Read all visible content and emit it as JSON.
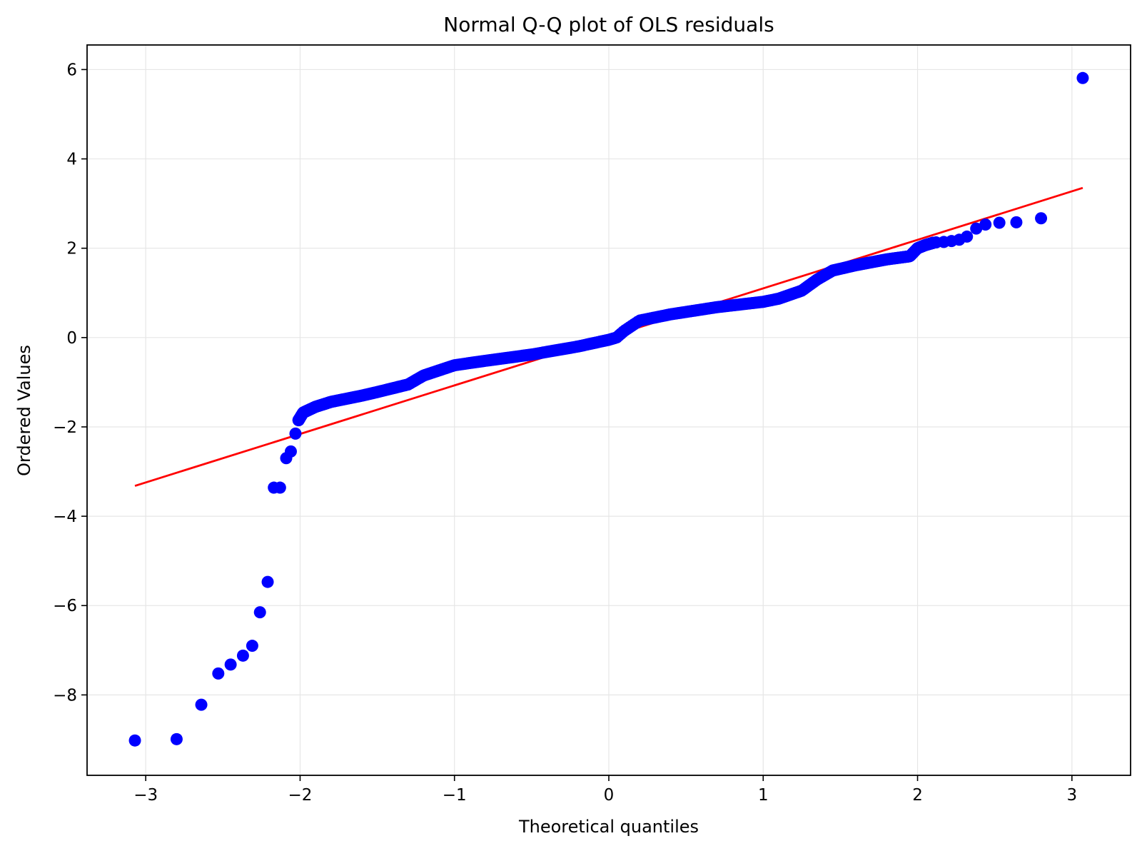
{
  "chart_data": {
    "type": "scatter",
    "title": "Normal Q-Q plot of OLS residuals",
    "xlabel": "Theoretical quantiles",
    "ylabel": "Ordered Values",
    "xlim": [
      -3.38,
      3.38
    ],
    "ylim": [
      -9.8,
      6.55
    ],
    "x_ticks": [
      -3,
      -2,
      -1,
      0,
      1,
      2,
      3
    ],
    "y_ticks": [
      -8,
      -6,
      -4,
      -2,
      0,
      2,
      4,
      6
    ],
    "x_tick_labels": [
      "−3",
      "−2",
      "−1",
      "0",
      "1",
      "2",
      "3"
    ],
    "y_tick_labels": [
      "−8",
      "−6",
      "−4",
      "−2",
      "0",
      "2",
      "4",
      "6"
    ],
    "grid": true,
    "legend": "none",
    "colors": {
      "points": "#0000ff",
      "fit_line": "#ff0000",
      "grid": "#e6e6e6",
      "axes": "#000000"
    },
    "fit_line": {
      "x": [
        -3.07,
        3.07
      ],
      "y": [
        -3.32,
        3.35
      ]
    },
    "outliers": [
      {
        "x": -3.07,
        "y": -9.02
      },
      {
        "x": -2.8,
        "y": -8.99
      },
      {
        "x": -2.64,
        "y": -8.22
      },
      {
        "x": -2.53,
        "y": -7.52
      },
      {
        "x": -2.45,
        "y": -7.32
      },
      {
        "x": -2.37,
        "y": -7.12
      },
      {
        "x": -2.31,
        "y": -6.9
      },
      {
        "x": -2.26,
        "y": -6.15
      },
      {
        "x": -2.21,
        "y": -5.47
      },
      {
        "x": -2.17,
        "y": -3.36
      },
      {
        "x": -2.13,
        "y": -3.36
      },
      {
        "x": -2.09,
        "y": -2.7
      },
      {
        "x": -2.06,
        "y": -2.55
      },
      {
        "x": -2.03,
        "y": -2.15
      },
      {
        "x": 2.12,
        "y": 2.13
      },
      {
        "x": 2.17,
        "y": 2.14
      },
      {
        "x": 2.22,
        "y": 2.16
      },
      {
        "x": 2.27,
        "y": 2.19
      },
      {
        "x": 2.32,
        "y": 2.26
      },
      {
        "x": 2.38,
        "y": 2.44
      },
      {
        "x": 2.44,
        "y": 2.53
      },
      {
        "x": 2.53,
        "y": 2.57
      },
      {
        "x": 2.64,
        "y": 2.58
      },
      {
        "x": 2.8,
        "y": 2.67
      },
      {
        "x": 3.07,
        "y": 5.81
      }
    ],
    "trend_knots": [
      [
        -2.01,
        -1.85
      ],
      [
        -1.98,
        -1.68
      ],
      [
        -1.9,
        -1.55
      ],
      [
        -1.8,
        -1.44
      ],
      [
        -1.6,
        -1.3
      ],
      [
        -1.5,
        -1.22
      ],
      [
        -1.3,
        -1.05
      ],
      [
        -1.2,
        -0.85
      ],
      [
        -1.0,
        -0.62
      ],
      [
        -0.8,
        -0.52
      ],
      [
        -0.5,
        -0.38
      ],
      [
        -0.2,
        -0.2
      ],
      [
        0.0,
        -0.05
      ],
      [
        0.05,
        0.0
      ],
      [
        0.1,
        0.15
      ],
      [
        0.2,
        0.38
      ],
      [
        0.4,
        0.52
      ],
      [
        0.7,
        0.68
      ],
      [
        1.0,
        0.8
      ],
      [
        1.1,
        0.87
      ],
      [
        1.25,
        1.05
      ],
      [
        1.35,
        1.3
      ],
      [
        1.45,
        1.5
      ],
      [
        1.6,
        1.62
      ],
      [
        1.8,
        1.75
      ],
      [
        1.95,
        1.82
      ],
      [
        2.0,
        2.0
      ],
      [
        2.05,
        2.07
      ],
      [
        2.1,
        2.12
      ]
    ],
    "n_trend_points": 470
  }
}
